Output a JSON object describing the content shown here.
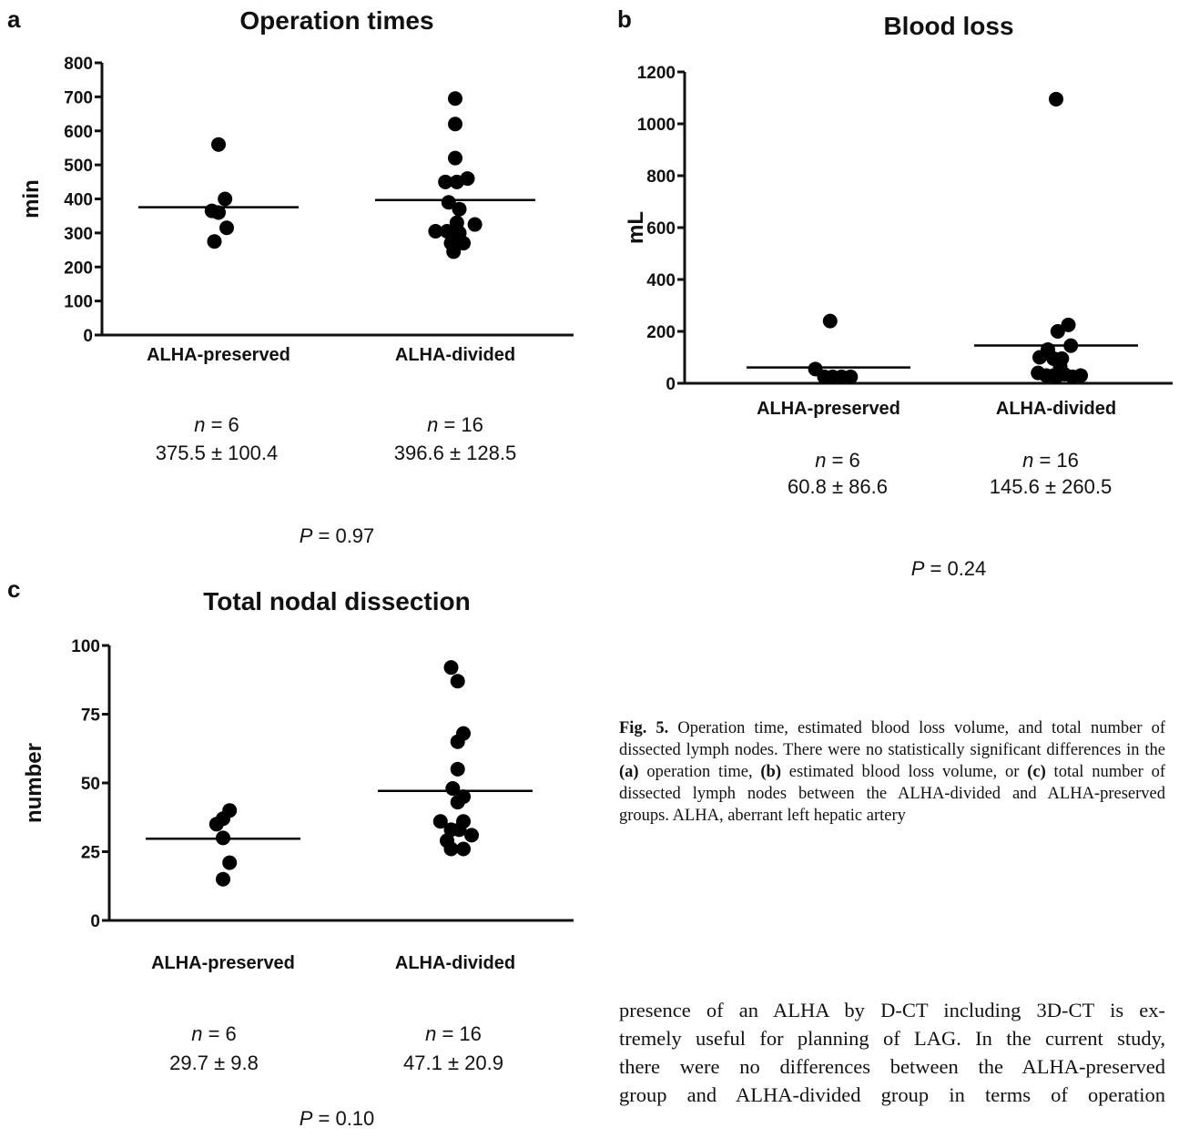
{
  "chart_data": [
    {
      "panel": "a",
      "type": "scatter",
      "title": "Operation times",
      "ylabel": "min",
      "ylim": [
        0,
        800
      ],
      "yticks": [
        0,
        100,
        200,
        300,
        400,
        500,
        600,
        700,
        800
      ],
      "categories": [
        "ALHA-preserved",
        "ALHA-divided"
      ],
      "series": [
        {
          "category": "ALHA-preserved",
          "mean": 375.5,
          "points": [
            [
              0,
              560
            ],
            [
              -0.08,
              365
            ],
            [
              0.08,
              400
            ],
            [
              -0.05,
              275
            ],
            [
              0.1,
              315
            ],
            [
              0.0,
              360
            ]
          ]
        },
        {
          "category": "ALHA-divided",
          "mean": 396.6,
          "points": [
            [
              0,
              695
            ],
            [
              0,
              620
            ],
            [
              0,
              520
            ],
            [
              -0.12,
              450
            ],
            [
              0.02,
              450
            ],
            [
              0.15,
              460
            ],
            [
              -0.08,
              390
            ],
            [
              0.05,
              370
            ],
            [
              -0.24,
              305
            ],
            [
              -0.1,
              305
            ],
            [
              0.05,
              300
            ],
            [
              0.24,
              325
            ],
            [
              -0.05,
              270
            ],
            [
              0.1,
              270
            ],
            [
              -0.02,
              245
            ],
            [
              0.02,
              330
            ]
          ]
        }
      ],
      "stats": [
        {
          "n_label": "n",
          "n_eq": " = 6",
          "summary": "375.5 ± 100.4"
        },
        {
          "n_label": "n",
          "n_eq": " = 16",
          "summary": "396.6 ± 128.5"
        }
      ],
      "p_label": "P",
      "p_eq": " = 0.97"
    },
    {
      "panel": "b",
      "type": "scatter",
      "title": "Blood loss",
      "ylabel": "mL",
      "ylim": [
        0,
        1250
      ],
      "yticks": [
        0,
        200,
        400,
        600,
        800,
        1000,
        1200
      ],
      "categories": [
        "ALHA-preserved",
        "ALHA-divided"
      ],
      "series": [
        {
          "category": "ALHA-preserved",
          "mean": 60.8,
          "points": [
            [
              0.02,
              240
            ],
            [
              -0.16,
              55
            ],
            [
              -0.05,
              25
            ],
            [
              0.05,
              25
            ],
            [
              0.16,
              25
            ],
            [
              0.27,
              25
            ]
          ]
        },
        {
          "category": "ALHA-divided",
          "mean": 145.6,
          "points": [
            [
              0,
              1095
            ],
            [
              0.15,
              225
            ],
            [
              0.02,
              200
            ],
            [
              -0.1,
              130
            ],
            [
              -0.03,
              95
            ],
            [
              0.07,
              95
            ],
            [
              0.18,
              145
            ],
            [
              -0.2,
              100
            ],
            [
              -0.22,
              40
            ],
            [
              -0.12,
              30
            ],
            [
              -0.03,
              30
            ],
            [
              0.05,
              65
            ],
            [
              0.1,
              35
            ],
            [
              0.2,
              25
            ],
            [
              0.3,
              30
            ],
            [
              0.0,
              25
            ]
          ]
        }
      ],
      "stats": [
        {
          "n_label": "n",
          "n_eq": " = 6",
          "summary": "60.8 ± 86.6"
        },
        {
          "n_label": "n",
          "n_eq": " = 16",
          "summary": "145.6 ± 260.5"
        }
      ],
      "p_label": "P",
      "p_eq": " = 0.24"
    },
    {
      "panel": "c",
      "type": "scatter",
      "title": "Total nodal dissection",
      "ylabel": "number",
      "ylim": [
        0,
        100
      ],
      "yticks": [
        0,
        25,
        50,
        75,
        100
      ],
      "categories": [
        "ALHA-preserved",
        "ALHA-divided"
      ],
      "series": [
        {
          "category": "ALHA-preserved",
          "mean": 29.7,
          "points": [
            [
              -0.08,
              35
            ],
            [
              0.0,
              37
            ],
            [
              0.08,
              40
            ],
            [
              0.0,
              30
            ],
            [
              0.08,
              21
            ],
            [
              0.0,
              15
            ]
          ]
        },
        {
          "category": "ALHA-divided",
          "mean": 47.1,
          "points": [
            [
              -0.05,
              92
            ],
            [
              0.03,
              87
            ],
            [
              0.1,
              68
            ],
            [
              0.03,
              65
            ],
            [
              0.03,
              55
            ],
            [
              -0.03,
              48
            ],
            [
              0.1,
              45
            ],
            [
              0.03,
              43
            ],
            [
              -0.18,
              36
            ],
            [
              -0.05,
              33
            ],
            [
              0.05,
              33
            ],
            [
              0.1,
              36
            ],
            [
              0.2,
              31
            ],
            [
              -0.1,
              29
            ],
            [
              -0.05,
              26
            ],
            [
              0.1,
              26
            ]
          ]
        }
      ],
      "stats": [
        {
          "n_label": "n",
          "n_eq": " = 6",
          "summary": "29.7 ± 9.8"
        },
        {
          "n_label": "n",
          "n_eq": " = 16",
          "summary": "47.1 ± 20.9"
        }
      ],
      "p_label": "P",
      "p_eq": " = 0.10"
    }
  ],
  "caption": {
    "label": "Fig. 5.",
    "parts": [
      " Operation time, estimated blood loss volume, and total number of dissected lymph nodes. There were no statistically significant differences in the ",
      "(a)",
      " operation time, ",
      "(b)",
      " estimated blood loss volume, or ",
      "(c)",
      " total number of dissected lymph nodes between the ALHA-divided and ALHA-preserved groups. ALHA, aberrant left hepatic artery"
    ]
  },
  "body_lines": [
    "presence of an ALHA by D-CT including 3D-CT is ex-",
    "tremely useful for planning of LAG. In the current study,",
    "there were no differences between the ALHA-preserved",
    "group and ALHA-divided group in terms of operation"
  ]
}
